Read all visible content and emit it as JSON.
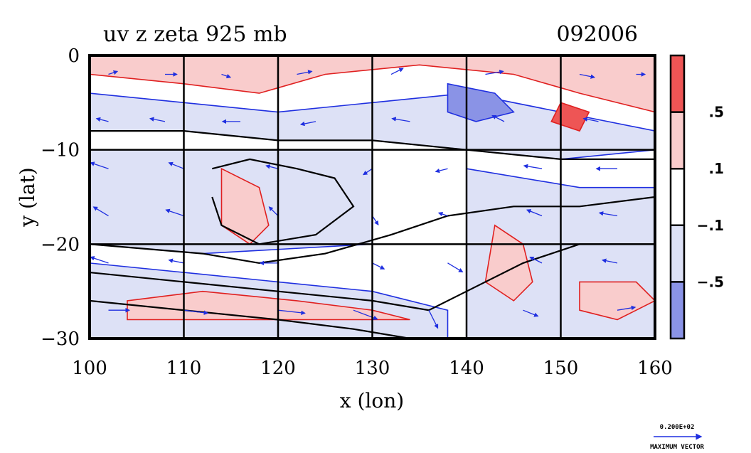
{
  "chart_data": {
    "type": "heatmap",
    "title": "uv z zeta 925 mb",
    "date_label": "092006",
    "xlabel": "x (lon)",
    "ylabel": "y (lat)",
    "xlim": [
      100,
      160
    ],
    "ylim": [
      -30,
      0
    ],
    "x_ticks": [
      100,
      110,
      120,
      130,
      140,
      150,
      160
    ],
    "x_tick_labels": [
      "100",
      "110",
      "120",
      "130",
      "140",
      "150",
      "160"
    ],
    "y_ticks": [
      0,
      -10,
      -20,
      -30
    ],
    "y_tick_labels": [
      "0",
      "−10",
      "−20",
      "−30"
    ],
    "grid": true,
    "colorbar": {
      "levels": [
        ".5",
        ".1",
        "−.1",
        "−.5"
      ],
      "colors": [
        "#ee5555",
        "#f9cccc",
        "#ffffff",
        "#dde1f6",
        "#8a93e6"
      ]
    },
    "regions": [
      {
        "name": "equatorial-band-positive",
        "sign": "positive",
        "points": [
          [
            100,
            -2
          ],
          [
            110,
            -3
          ],
          [
            118,
            -4
          ],
          [
            125,
            -2
          ],
          [
            135,
            -1
          ],
          [
            145,
            -2
          ],
          [
            152,
            -4
          ],
          [
            160,
            -6
          ],
          [
            160,
            0
          ],
          [
            100,
            0
          ]
        ]
      },
      {
        "name": "north-negative-band",
        "sign": "negative",
        "points": [
          [
            100,
            -4
          ],
          [
            110,
            -5
          ],
          [
            120,
            -6
          ],
          [
            130,
            -5
          ],
          [
            140,
            -4
          ],
          [
            150,
            -6
          ],
          [
            160,
            -8
          ],
          [
            160,
            -10
          ],
          [
            150,
            -11
          ],
          [
            140,
            -10
          ],
          [
            130,
            -9
          ],
          [
            120,
            -9
          ],
          [
            110,
            -8
          ],
          [
            100,
            -8
          ]
        ]
      },
      {
        "name": "central-negative-block",
        "sign": "negative",
        "points": [
          [
            100,
            -10
          ],
          [
            130,
            -10
          ],
          [
            130,
            -20
          ],
          [
            112,
            -21
          ],
          [
            100,
            -20
          ]
        ]
      },
      {
        "name": "west-positive-patch",
        "sign": "positive",
        "points": [
          [
            114,
            -12
          ],
          [
            118,
            -14
          ],
          [
            119,
            -18
          ],
          [
            117,
            -20
          ],
          [
            114,
            -18
          ]
        ]
      },
      {
        "name": "southwest-negative-swirl",
        "sign": "negative",
        "points": [
          [
            100,
            -22
          ],
          [
            110,
            -23
          ],
          [
            120,
            -24
          ],
          [
            130,
            -25
          ],
          [
            138,
            -27
          ],
          [
            138,
            -30
          ],
          [
            100,
            -30
          ]
        ]
      },
      {
        "name": "south-positive-streak",
        "sign": "positive",
        "points": [
          [
            104,
            -26
          ],
          [
            112,
            -25
          ],
          [
            122,
            -26
          ],
          [
            130,
            -27
          ],
          [
            134,
            -28
          ],
          [
            122,
            -28
          ],
          [
            110,
            -28
          ],
          [
            104,
            -28
          ]
        ]
      },
      {
        "name": "east-negative-block",
        "sign": "negative",
        "points": [
          [
            140,
            -12
          ],
          [
            152,
            -14
          ],
          [
            160,
            -14
          ],
          [
            160,
            -30
          ],
          [
            140,
            -30
          ]
        ]
      },
      {
        "name": "east-positive-ridge",
        "sign": "positive",
        "points": [
          [
            143,
            -18
          ],
          [
            146,
            -20
          ],
          [
            147,
            -24
          ],
          [
            145,
            -26
          ],
          [
            142,
            -24
          ]
        ]
      },
      {
        "name": "southeast-positive-patch",
        "sign": "positive",
        "points": [
          [
            152,
            -24
          ],
          [
            158,
            -24
          ],
          [
            160,
            -26
          ],
          [
            156,
            -28
          ],
          [
            152,
            -27
          ]
        ]
      },
      {
        "name": "strong-negative-core-ne",
        "sign": "strong-negative",
        "points": [
          [
            138,
            -3
          ],
          [
            143,
            -4
          ],
          [
            145,
            -6
          ],
          [
            141,
            -7
          ],
          [
            138,
            -6
          ]
        ]
      },
      {
        "name": "strong-positive-core-ne",
        "sign": "strong-positive",
        "points": [
          [
            150,
            -5
          ],
          [
            153,
            -6
          ],
          [
            152,
            -8
          ],
          [
            149,
            -7
          ]
        ]
      }
    ],
    "contours": [
      {
        "name": "height-contour-1",
        "points": [
          [
            100,
            -8
          ],
          [
            110,
            -8
          ],
          [
            120,
            -9
          ],
          [
            130,
            -9
          ],
          [
            140,
            -10
          ],
          [
            150,
            -11
          ],
          [
            160,
            -11
          ]
        ]
      },
      {
        "name": "height-contour-2",
        "points": [
          [
            100,
            -20
          ],
          [
            112,
            -21
          ],
          [
            118,
            -22
          ],
          [
            125,
            -21
          ],
          [
            132,
            -19
          ],
          [
            138,
            -17
          ],
          [
            145,
            -16
          ],
          [
            152,
            -16
          ],
          [
            160,
            -15
          ]
        ]
      },
      {
        "name": "height-contour-3",
        "points": [
          [
            100,
            -23
          ],
          [
            110,
            -24
          ],
          [
            120,
            -25
          ],
          [
            130,
            -26
          ],
          [
            136,
            -27
          ],
          [
            140,
            -25
          ],
          [
            146,
            -22
          ],
          [
            152,
            -20
          ],
          [
            160,
            -20
          ]
        ]
      },
      {
        "name": "height-contour-4",
        "points": [
          [
            100,
            -26
          ],
          [
            110,
            -27
          ],
          [
            120,
            -28
          ],
          [
            128,
            -29
          ],
          [
            134,
            -30
          ]
        ]
      },
      {
        "name": "height-contour-5",
        "points": [
          [
            113,
            -12
          ],
          [
            117,
            -11
          ],
          [
            122,
            -12
          ],
          [
            126,
            -13
          ],
          [
            128,
            -16
          ],
          [
            124,
            -19
          ],
          [
            118,
            -20
          ],
          [
            114,
            -18
          ],
          [
            113,
            -15
          ]
        ]
      }
    ],
    "vectors": [
      {
        "x": 102,
        "y": -2,
        "u": 3,
        "v": 1
      },
      {
        "x": 108,
        "y": -2,
        "u": 4,
        "v": 0
      },
      {
        "x": 114,
        "y": -2,
        "u": 3,
        "v": -1
      },
      {
        "x": 122,
        "y": -2,
        "u": 5,
        "v": 1
      },
      {
        "x": 132,
        "y": -2,
        "u": 4,
        "v": 2
      },
      {
        "x": 142,
        "y": -2,
        "u": 6,
        "v": 1
      },
      {
        "x": 152,
        "y": -2,
        "u": 5,
        "v": -1
      },
      {
        "x": 158,
        "y": -2,
        "u": 3,
        "v": 0
      },
      {
        "x": 102,
        "y": -7,
        "u": -4,
        "v": 1
      },
      {
        "x": 108,
        "y": -7,
        "u": -5,
        "v": 1
      },
      {
        "x": 116,
        "y": -7,
        "u": -6,
        "v": 0
      },
      {
        "x": 124,
        "y": -7,
        "u": -5,
        "v": -1
      },
      {
        "x": 134,
        "y": -7,
        "u": -6,
        "v": 1
      },
      {
        "x": 144,
        "y": -7,
        "u": -4,
        "v": 2
      },
      {
        "x": 154,
        "y": -7,
        "u": -5,
        "v": 1
      },
      {
        "x": 102,
        "y": -12,
        "u": -6,
        "v": 2
      },
      {
        "x": 110,
        "y": -12,
        "u": -5,
        "v": 2
      },
      {
        "x": 120,
        "y": -12,
        "u": -4,
        "v": 1
      },
      {
        "x": 130,
        "y": -12,
        "u": -3,
        "v": -2
      },
      {
        "x": 138,
        "y": -12,
        "u": -4,
        "v": -1
      },
      {
        "x": 148,
        "y": -12,
        "u": -6,
        "v": 1
      },
      {
        "x": 156,
        "y": -12,
        "u": -7,
        "v": 0
      },
      {
        "x": 102,
        "y": -17,
        "u": -5,
        "v": 3
      },
      {
        "x": 110,
        "y": -17,
        "u": -6,
        "v": 2
      },
      {
        "x": 120,
        "y": -17,
        "u": -3,
        "v": 3
      },
      {
        "x": 130,
        "y": -17,
        "u": 2,
        "v": -3
      },
      {
        "x": 138,
        "y": -17,
        "u": -3,
        "v": 1
      },
      {
        "x": 148,
        "y": -17,
        "u": -5,
        "v": 2
      },
      {
        "x": 156,
        "y": -17,
        "u": -6,
        "v": 1
      },
      {
        "x": 102,
        "y": -22,
        "u": -6,
        "v": 2
      },
      {
        "x": 110,
        "y": -22,
        "u": -5,
        "v": 1
      },
      {
        "x": 120,
        "y": -22,
        "u": -6,
        "v": 0
      },
      {
        "x": 130,
        "y": -22,
        "u": 4,
        "v": -2
      },
      {
        "x": 138,
        "y": -22,
        "u": 5,
        "v": -3
      },
      {
        "x": 148,
        "y": -22,
        "u": -4,
        "v": 2
      },
      {
        "x": 156,
        "y": -22,
        "u": -5,
        "v": 1
      },
      {
        "x": 102,
        "y": -27,
        "u": 7,
        "v": 0
      },
      {
        "x": 110,
        "y": -27,
        "u": 8,
        "v": -1
      },
      {
        "x": 120,
        "y": -27,
        "u": 9,
        "v": -1
      },
      {
        "x": 128,
        "y": -27,
        "u": 8,
        "v": -3
      },
      {
        "x": 136,
        "y": -27,
        "u": 3,
        "v": -6
      },
      {
        "x": 146,
        "y": -27,
        "u": 5,
        "v": -2
      },
      {
        "x": 156,
        "y": -27,
        "u": 6,
        "v": 1
      }
    ]
  },
  "legend": {
    "vector_value": "0.200E+02",
    "vector_label": "MAXIMUM VECTOR"
  }
}
